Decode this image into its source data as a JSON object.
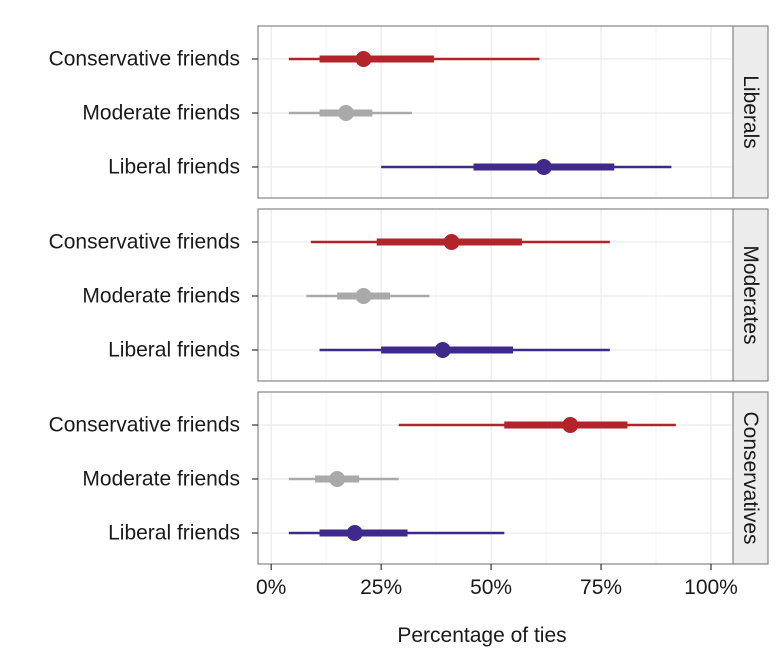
{
  "chart_data": {
    "type": "dotplot-interval",
    "xlabel": "Percentage of ties",
    "x_ticks": [
      0,
      25,
      50,
      75,
      100
    ],
    "x_tick_labels": [
      "0%",
      "25%",
      "50%",
      "75%",
      "100%"
    ],
    "xlim": [
      -3,
      105
    ],
    "categories": [
      "Conservative friends",
      "Moderate friends",
      "Liberal friends"
    ],
    "colors": {
      "Conservative friends": "#b2232a",
      "Moderate friends": "#a9a9a9",
      "Liberal friends": "#3f2a8c"
    },
    "panels": [
      {
        "strip": "Liberals",
        "rows": [
          {
            "category": "Conservative friends",
            "estimate": 21,
            "inner": [
              11,
              37
            ],
            "outer": [
              4,
              61
            ]
          },
          {
            "category": "Moderate friends",
            "estimate": 17,
            "inner": [
              11,
              23
            ],
            "outer": [
              4,
              32
            ]
          },
          {
            "category": "Liberal friends",
            "estimate": 62,
            "inner": [
              46,
              78
            ],
            "outer": [
              25,
              91
            ]
          }
        ]
      },
      {
        "strip": "Moderates",
        "rows": [
          {
            "category": "Conservative friends",
            "estimate": 41,
            "inner": [
              24,
              57
            ],
            "outer": [
              9,
              77
            ]
          },
          {
            "category": "Moderate friends",
            "estimate": 21,
            "inner": [
              15,
              27
            ],
            "outer": [
              8,
              36
            ]
          },
          {
            "category": "Liberal friends",
            "estimate": 39,
            "inner": [
              25,
              55
            ],
            "outer": [
              11,
              77
            ]
          }
        ]
      },
      {
        "strip": "Conservatives",
        "rows": [
          {
            "category": "Conservative friends",
            "estimate": 68,
            "inner": [
              53,
              81
            ],
            "outer": [
              29,
              92
            ]
          },
          {
            "category": "Moderate friends",
            "estimate": 15,
            "inner": [
              10,
              20
            ],
            "outer": [
              4,
              29
            ]
          },
          {
            "category": "Liberal friends",
            "estimate": 19,
            "inner": [
              11,
              31
            ],
            "outer": [
              4,
              53
            ]
          }
        ]
      }
    ]
  }
}
